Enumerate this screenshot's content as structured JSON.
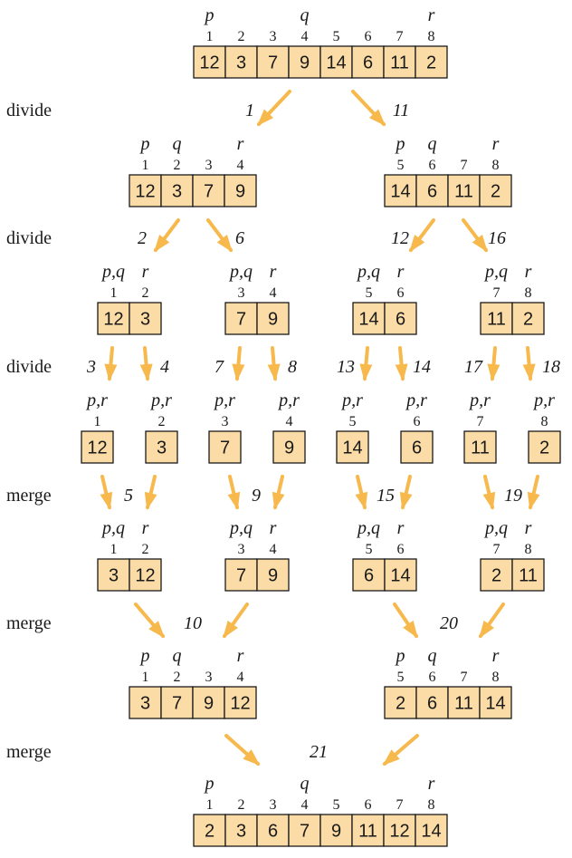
{
  "row_labels": [
    "divide",
    "divide",
    "divide",
    "merge",
    "merge",
    "merge"
  ],
  "colors": {
    "cell_fill": "#fbdca6",
    "arrow": "#f7b84c",
    "text": "#1a1a1a"
  },
  "arrays": [
    {
      "id": "root",
      "pointers": [
        "p",
        "q",
        "r"
      ],
      "indices": [
        "1",
        "2",
        "3",
        "4",
        "5",
        "6",
        "7",
        "8"
      ],
      "values": [
        "12",
        "3",
        "7",
        "9",
        "14",
        "6",
        "11",
        "2"
      ]
    },
    {
      "id": "d1-left",
      "pointers": [
        "p",
        "q",
        "r"
      ],
      "indices": [
        "1",
        "2",
        "3",
        "4"
      ],
      "values": [
        "12",
        "3",
        "7",
        "9"
      ]
    },
    {
      "id": "d1-right",
      "pointers": [
        "p",
        "q",
        "r"
      ],
      "indices": [
        "5",
        "6",
        "7",
        "8"
      ],
      "values": [
        "14",
        "6",
        "11",
        "2"
      ]
    },
    {
      "id": "d2-a",
      "pointers": [
        "p,q",
        "r"
      ],
      "indices": [
        "1",
        "2"
      ],
      "values": [
        "12",
        "3"
      ]
    },
    {
      "id": "d2-b",
      "pointers": [
        "p,q",
        "r"
      ],
      "indices": [
        "3",
        "4"
      ],
      "values": [
        "7",
        "9"
      ]
    },
    {
      "id": "d2-c",
      "pointers": [
        "p,q",
        "r"
      ],
      "indices": [
        "5",
        "6"
      ],
      "values": [
        "14",
        "6"
      ]
    },
    {
      "id": "d2-d",
      "pointers": [
        "p,q",
        "r"
      ],
      "indices": [
        "7",
        "8"
      ],
      "values": [
        "11",
        "2"
      ]
    },
    {
      "id": "leaf-1",
      "pointers": [
        "p,r"
      ],
      "indices": [
        "1"
      ],
      "values": [
        "12"
      ]
    },
    {
      "id": "leaf-2",
      "pointers": [
        "p,r"
      ],
      "indices": [
        "2"
      ],
      "values": [
        "3"
      ]
    },
    {
      "id": "leaf-3",
      "pointers": [
        "p,r"
      ],
      "indices": [
        "3"
      ],
      "values": [
        "7"
      ]
    },
    {
      "id": "leaf-4",
      "pointers": [
        "p,r"
      ],
      "indices": [
        "4"
      ],
      "values": [
        "9"
      ]
    },
    {
      "id": "leaf-5",
      "pointers": [
        "p,r"
      ],
      "indices": [
        "5"
      ],
      "values": [
        "14"
      ]
    },
    {
      "id": "leaf-6",
      "pointers": [
        "p,r"
      ],
      "indices": [
        "6"
      ],
      "values": [
        "6"
      ]
    },
    {
      "id": "leaf-7",
      "pointers": [
        "p,r"
      ],
      "indices": [
        "7"
      ],
      "values": [
        "11"
      ]
    },
    {
      "id": "leaf-8",
      "pointers": [
        "p,r"
      ],
      "indices": [
        "8"
      ],
      "values": [
        "2"
      ]
    },
    {
      "id": "m1-a",
      "pointers": [
        "p,q",
        "r"
      ],
      "indices": [
        "1",
        "2"
      ],
      "values": [
        "3",
        "12"
      ]
    },
    {
      "id": "m1-b",
      "pointers": [
        "p,q",
        "r"
      ],
      "indices": [
        "3",
        "4"
      ],
      "values": [
        "7",
        "9"
      ]
    },
    {
      "id": "m1-c",
      "pointers": [
        "p,q",
        "r"
      ],
      "indices": [
        "5",
        "6"
      ],
      "values": [
        "6",
        "14"
      ]
    },
    {
      "id": "m1-d",
      "pointers": [
        "p,q",
        "r"
      ],
      "indices": [
        "7",
        "8"
      ],
      "values": [
        "2",
        "11"
      ]
    },
    {
      "id": "m2-left",
      "pointers": [
        "p",
        "q",
        "r"
      ],
      "indices": [
        "1",
        "2",
        "3",
        "4"
      ],
      "values": [
        "3",
        "7",
        "9",
        "12"
      ]
    },
    {
      "id": "m2-right",
      "pointers": [
        "p",
        "q",
        "r"
      ],
      "indices": [
        "5",
        "6",
        "7",
        "8"
      ],
      "values": [
        "2",
        "6",
        "11",
        "14"
      ]
    },
    {
      "id": "final",
      "pointers": [
        "p",
        "q",
        "r"
      ],
      "indices": [
        "1",
        "2",
        "3",
        "4",
        "5",
        "6",
        "7",
        "8"
      ],
      "values": [
        "2",
        "3",
        "6",
        "7",
        "9",
        "11",
        "12",
        "14"
      ]
    }
  ],
  "steps": [
    "1",
    "11",
    "2",
    "6",
    "12",
    "16",
    "3",
    "4",
    "7",
    "8",
    "13",
    "14",
    "17",
    "18",
    "5",
    "9",
    "15",
    "19",
    "10",
    "20",
    "21"
  ]
}
